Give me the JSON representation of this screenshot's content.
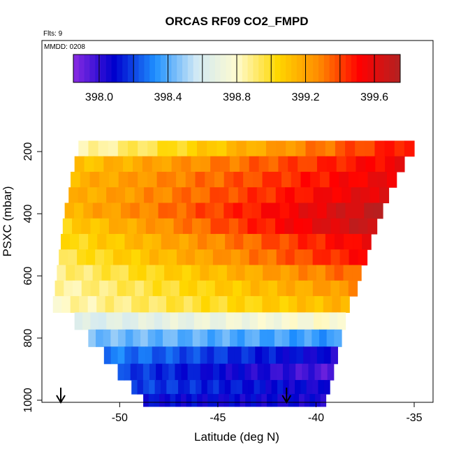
{
  "chart_data": {
    "type": "heatmap",
    "title": "ORCAS RF09 CO2_FMPD",
    "annotations": {
      "flights": "Flts: 9",
      "mmdd": "MMDD: 0208"
    },
    "xlabel": "Latitude (deg N)",
    "ylabel": "PSXC (mbar)",
    "xlim": [
      -55,
      -34
    ],
    "ylim": [
      1010,
      80
    ],
    "x_ticks": [
      -50,
      -45,
      -40,
      -35
    ],
    "y_ticks": [
      200,
      400,
      600,
      800,
      1000
    ],
    "colorbar": {
      "min": 397.85,
      "max": 399.75,
      "ticks": [
        398.0,
        398.4,
        398.8,
        399.2,
        399.6
      ],
      "colors": [
        "#8a2be2",
        "#0000cd",
        "#1e90ff",
        "#cfe8f5",
        "#fffbd0",
        "#ffd700",
        "#ff8c00",
        "#ff0000",
        "#b22222"
      ]
    },
    "arrows_at_latitude": [
      -53.0,
      -41.5
    ],
    "rows": [
      {
        "p": 190,
        "lat0": -52.1,
        "lat1": -35.0,
        "start": 398.82,
        "end": 399.5
      },
      {
        "p": 240,
        "lat0": -52.3,
        "lat1": -35.5,
        "start": 399.1,
        "end": 399.55
      },
      {
        "p": 290,
        "lat0": -52.5,
        "lat1": -35.9,
        "start": 399.15,
        "end": 399.58
      },
      {
        "p": 340,
        "lat0": -52.6,
        "lat1": -36.3,
        "start": 399.15,
        "end": 399.62
      },
      {
        "p": 390,
        "lat0": -52.8,
        "lat1": -36.6,
        "start": 399.15,
        "end": 399.7
      },
      {
        "p": 440,
        "lat0": -52.9,
        "lat1": -36.9,
        "start": 399.05,
        "end": 399.7
      },
      {
        "p": 490,
        "lat0": -53.0,
        "lat1": -37.2,
        "start": 399.0,
        "end": 399.55
      },
      {
        "p": 540,
        "lat0": -53.1,
        "lat1": -37.4,
        "start": 398.95,
        "end": 399.5
      },
      {
        "p": 590,
        "lat0": -53.2,
        "lat1": -37.7,
        "start": 398.88,
        "end": 399.35
      },
      {
        "p": 640,
        "lat0": -53.3,
        "lat1": -37.9,
        "start": 398.84,
        "end": 399.25
      },
      {
        "p": 690,
        "lat0": -53.4,
        "lat1": -38.3,
        "start": 398.82,
        "end": 399.15
      },
      {
        "p": 745,
        "lat0": -52.3,
        "lat1": -38.5,
        "start": 398.62,
        "end": 398.8
      },
      {
        "p": 800,
        "lat0": -51.6,
        "lat1": -38.7,
        "start": 398.45,
        "end": 398.35
      },
      {
        "p": 855,
        "lat0": -50.8,
        "lat1": -38.9,
        "start": 398.3,
        "end": 398.05
      },
      {
        "p": 910,
        "lat0": -50.1,
        "lat1": -39.1,
        "start": 398.2,
        "end": 397.95
      },
      {
        "p": 960,
        "lat0": -49.4,
        "lat1": -39.3,
        "start": 398.2,
        "end": 398.05
      },
      {
        "p": 1000,
        "lat0": -48.8,
        "lat1": -39.5,
        "start": 398.1,
        "end": 398.05
      }
    ]
  }
}
